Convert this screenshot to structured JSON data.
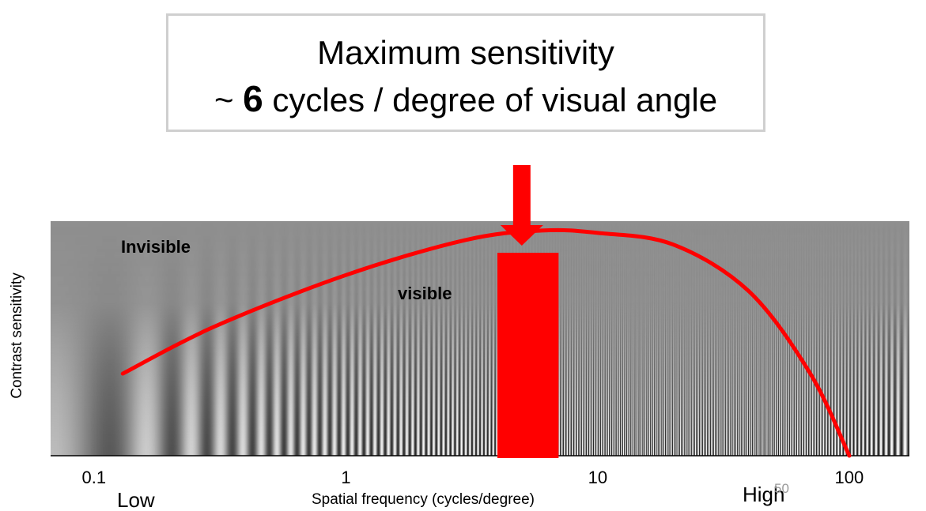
{
  "title": {
    "line1": "Maximum sensitivity",
    "prefix": "~",
    "peak_value": "6",
    "suffix": "cycles / degree of visual angle"
  },
  "labels": {
    "invisible": "Invisible",
    "visible": "visible",
    "low": "Low",
    "high": "High",
    "page_number": "50"
  },
  "chart_data": {
    "type": "line",
    "xlabel": "Spatial frequency (cycles/degree)",
    "ylabel": "Contrast sensitivity",
    "x_scale": "log",
    "x_ticks": [
      "0.1",
      "1",
      "10",
      "100"
    ],
    "x": [
      0.13,
      0.3,
      1,
      3,
      6,
      10,
      20,
      40,
      70,
      100
    ],
    "series": [
      {
        "values": [
          0.35,
          0.55,
          0.77,
          0.92,
          0.96,
          0.95,
          0.9,
          0.7,
          0.35,
          0.0
        ]
      }
    ],
    "highlight_band": {
      "from": 4,
      "to": 7
    },
    "peak_marker_x": 5,
    "colors": {
      "curve": "#ff0000",
      "band": "#ff0000",
      "arrow": "#ff0000"
    }
  }
}
